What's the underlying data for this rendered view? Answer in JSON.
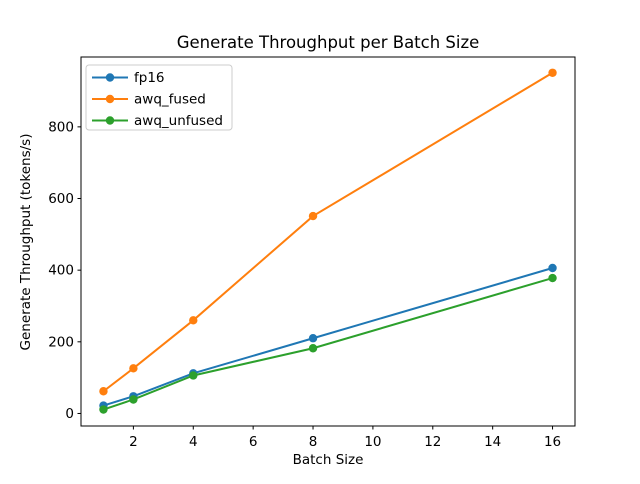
{
  "chart_data": {
    "type": "line",
    "title": "Generate Throughput per Batch Size",
    "xlabel": "Batch Size",
    "ylabel": "Generate Throughput (tokens/s)",
    "x": [
      1,
      2,
      4,
      8,
      16
    ],
    "series": [
      {
        "name": "fp16",
        "color": "#1f77b4",
        "values": [
          22,
          48,
          112,
          210,
          406
        ]
      },
      {
        "name": "awq_fused",
        "color": "#ff7f0e",
        "values": [
          62,
          126,
          260,
          551,
          951
        ]
      },
      {
        "name": "awq_unfused",
        "color": "#2ca02c",
        "values": [
          11,
          39,
          106,
          182,
          378
        ]
      }
    ],
    "x_ticks": [
      2,
      4,
      6,
      8,
      10,
      12,
      14,
      16
    ],
    "y_ticks": [
      0,
      200,
      400,
      600,
      800
    ],
    "xlim": [
      0.25,
      16.75
    ],
    "ylim": [
      -35,
      995
    ],
    "grid": false,
    "marker": "o",
    "legend_position": "upper left",
    "background_color": "#ffffff",
    "spine_color": "#000000",
    "legend_border_color": "#cccccc"
  }
}
